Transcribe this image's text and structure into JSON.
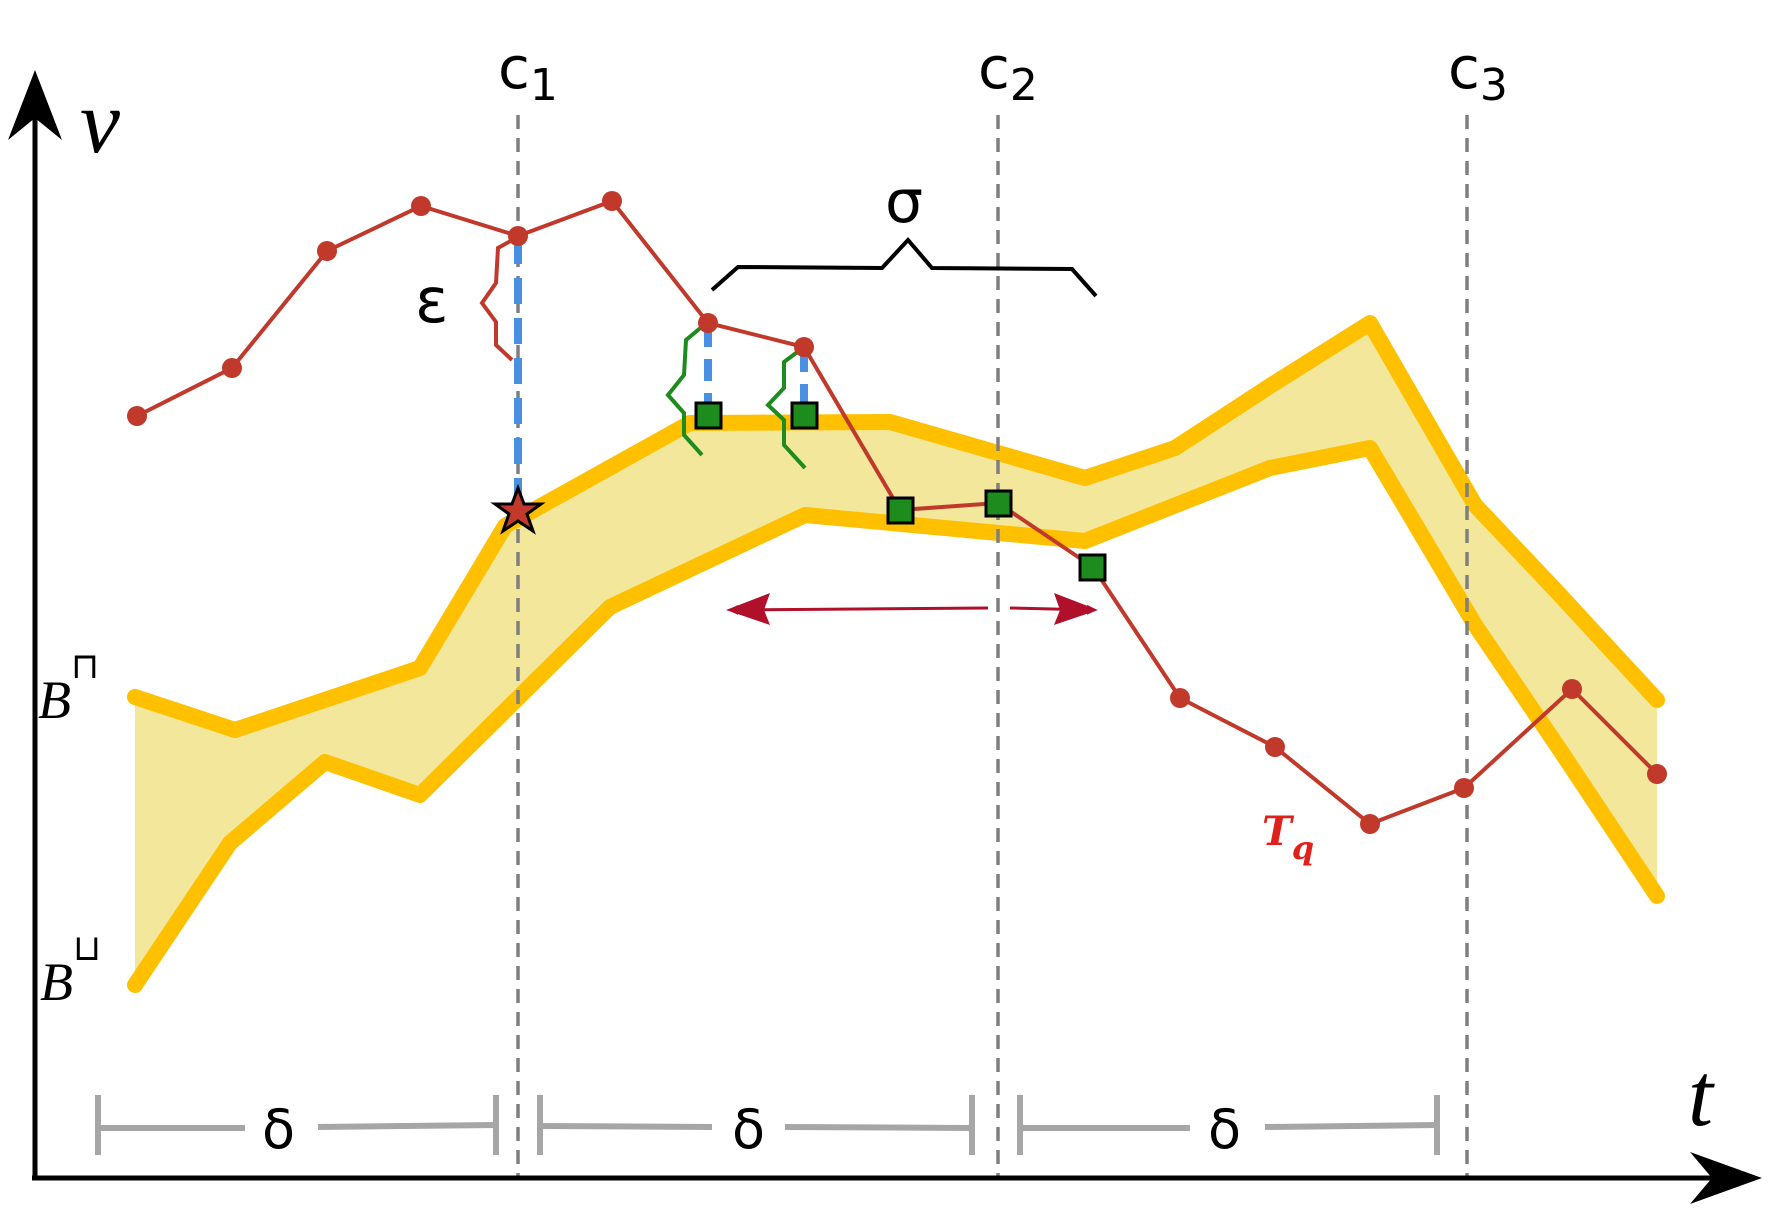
{
  "axes": {
    "y_label": "v",
    "x_label": "t"
  },
  "cut_lines": [
    {
      "label": "c",
      "sub": "1"
    },
    {
      "label": "c",
      "sub": "2"
    },
    {
      "label": "c",
      "sub": "3"
    }
  ],
  "epsilon_label": "ε",
  "sigma_label": "σ",
  "delta_label": "δ",
  "band": {
    "upper_label": "B",
    "upper_sup": "⊓",
    "lower_label": "B",
    "lower_sup": "⊔"
  },
  "query": {
    "label": "T",
    "sub": "q"
  },
  "colors": {
    "band_stroke": "#FFC000",
    "band_fill": "#F2E79A",
    "trajectory": "#C0392B",
    "match_marker": "#1E8B1E",
    "epsilon_dash": "#4A90E2",
    "cut_line": "#7F7F7F",
    "delta_bar": "#A6A6A6",
    "sigma_arrow": "#B0102A",
    "axis": "#000000"
  }
}
